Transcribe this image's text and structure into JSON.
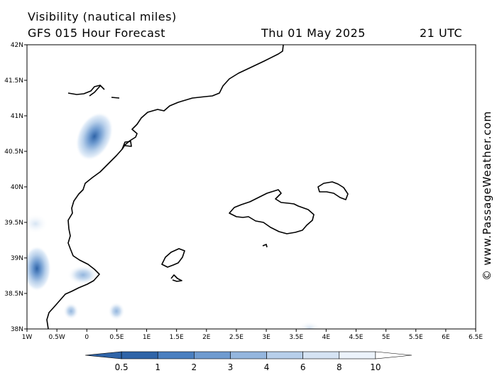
{
  "header": {
    "line1": "Visibility (nautical miles)",
    "line2_left": "GFS 015 Hour Forecast",
    "line2_date": "Thu 01 May 2025",
    "line2_time": "21 UTC"
  },
  "watermark": "© www.PassageWeather.com",
  "map": {
    "lon_range": [
      -1,
      6.5
    ],
    "lat_range": [
      38,
      42
    ],
    "lon_labels": [
      "1W",
      "0.5W",
      "0",
      "0.5E",
      "1E",
      "1.5E",
      "2E",
      "2.5E",
      "3E",
      "3.5E",
      "4E",
      "4.5E",
      "5E",
      "5.5E",
      "6E",
      "6.5E"
    ],
    "lat_labels": [
      "38N",
      "38.5N",
      "39N",
      "39.5N",
      "40N",
      "40.5N",
      "41N",
      "41.5N",
      "42N"
    ],
    "coastline_color": "#000000"
  },
  "legend": {
    "labels": [
      "0.5",
      "1",
      "2",
      "3",
      "4",
      "6",
      "8",
      "10"
    ],
    "colors": [
      "#2f64a8",
      "#4a7fc0",
      "#6f9bd0",
      "#94b6de",
      "#b7cfea",
      "#d5e3f3",
      "#ecf3fb",
      "#ffffff"
    ]
  }
}
